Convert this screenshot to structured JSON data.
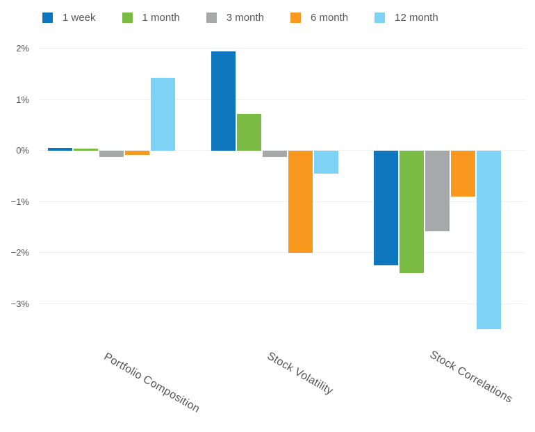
{
  "chart_data": {
    "type": "bar",
    "title": "",
    "categories": [
      "Portfolio Composition",
      "Stock Volatility",
      "Stock Correlations"
    ],
    "series": [
      {
        "name": "1 week",
        "color": "#0e76bc",
        "values": [
          0.05,
          1.95,
          -2.25
        ]
      },
      {
        "name": "1 month",
        "color": "#7abc43",
        "values": [
          0.04,
          0.72,
          -2.4
        ]
      },
      {
        "name": "3 month",
        "color": "#a6a8aa",
        "values": [
          -0.12,
          -0.12,
          -1.58
        ]
      },
      {
        "name": "6 month",
        "color": "#f8981f",
        "values": [
          -0.08,
          -2.0,
          -0.9
        ]
      },
      {
        "name": "12 month",
        "color": "#7dd2f6",
        "values": [
          1.43,
          -0.45,
          -3.5
        ]
      }
    ],
    "yticks": [
      {
        "label": "2%",
        "value": 2
      },
      {
        "label": "1%",
        "value": 1
      },
      {
        "label": "0%",
        "value": 0
      },
      {
        "label": "−1%",
        "value": -1
      },
      {
        "label": "−2%",
        "value": -2
      },
      {
        "label": "−3%",
        "value": -3
      }
    ],
    "ylim": [
      -3.6,
      2.15
    ],
    "unit": "%",
    "grid": "horizontal",
    "legend_position": "top-left"
  },
  "colors": {
    "background": "#ffffff",
    "gridline": "#f0f1f1",
    "text": "#55565a"
  }
}
